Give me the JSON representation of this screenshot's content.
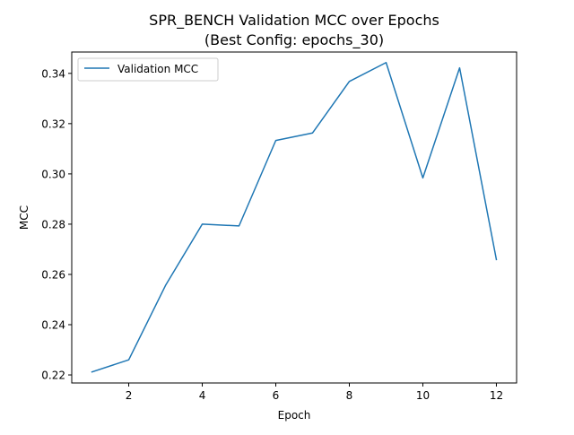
{
  "chart_data": {
    "type": "line",
    "title": "SPR_BENCH Validation MCC over Epochs",
    "subtitle": "(Best Config: epochs_30)",
    "xlabel": "Epoch",
    "ylabel": "MCC",
    "xlim": [
      0.45,
      12.55
    ],
    "ylim": [
      0.2168,
      0.3485
    ],
    "x_ticks": [
      2,
      4,
      6,
      8,
      10,
      12
    ],
    "y_ticks": [
      0.22,
      0.24,
      0.26,
      0.28,
      0.3,
      0.32,
      0.34
    ],
    "x_tick_labels": [
      "2",
      "4",
      "6",
      "8",
      "10",
      "12"
    ],
    "y_tick_labels": [
      "0.22",
      "0.24",
      "0.26",
      "0.28",
      "0.30",
      "0.32",
      "0.34"
    ],
    "legend_position": "top-left",
    "grid": false,
    "x": [
      1,
      2,
      3,
      4,
      5,
      6,
      7,
      8,
      9,
      10,
      11,
      12
    ],
    "series": [
      {
        "name": "Validation MCC",
        "color": "#1f77b4",
        "values": [
          0.2212,
          0.226,
          0.2556,
          0.28,
          0.2793,
          0.3133,
          0.3163,
          0.3368,
          0.3443,
          0.2984,
          0.3422,
          0.2659
        ]
      }
    ]
  }
}
